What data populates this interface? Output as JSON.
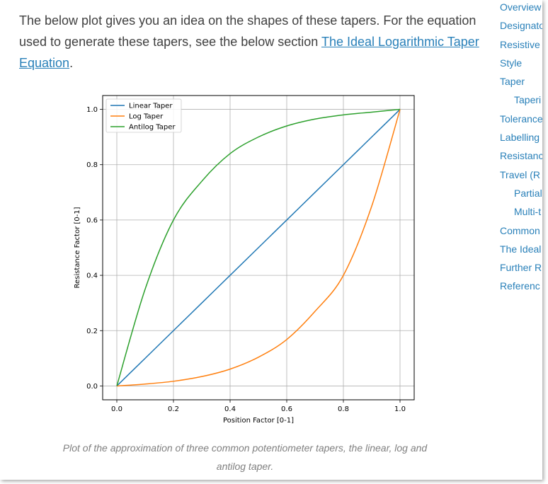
{
  "intro": {
    "text_before": "The below plot gives you an idea on the shapes of these tapers. For the equation used to generate these tapers, see the below section ",
    "link_text": "The Ideal Logarithmic Taper Equation",
    "text_after": "."
  },
  "toc": {
    "items": [
      {
        "label": "Overview",
        "sub": false
      },
      {
        "label": "Designato",
        "sub": false
      },
      {
        "label": "Resistive",
        "sub": false
      },
      {
        "label": "Style",
        "sub": false
      },
      {
        "label": "Taper",
        "sub": false
      },
      {
        "label": "Taperi",
        "sub": true
      },
      {
        "label": "Tolerance",
        "sub": false
      },
      {
        "label": "Labelling",
        "sub": false
      },
      {
        "label": "Resistanc",
        "sub": false
      },
      {
        "label": "Travel (R",
        "sub": false
      },
      {
        "label": "Partial",
        "sub": true
      },
      {
        "label": "Multi-t",
        "sub": true
      },
      {
        "label": "Common",
        "sub": false
      },
      {
        "label": "The Ideal",
        "sub": false
      },
      {
        "label": "Further R",
        "sub": false
      },
      {
        "label": "Referenc",
        "sub": false
      }
    ]
  },
  "caption": "Plot of the approximation of three common potentiometer tapers, the linear, log and antilog taper.",
  "colors": {
    "link": "#2980b9",
    "text": "#404040",
    "caption": "#808080",
    "linear": "#1f77b4",
    "log": "#ff7f0e",
    "antilog": "#2ca02c",
    "grid": "#b0b0b0"
  },
  "chart_data": {
    "type": "line",
    "title": "",
    "xlabel": "Position Factor [0-1]",
    "ylabel": "Resistance Factor [0-1]",
    "xlim": [
      -0.05,
      1.05
    ],
    "ylim": [
      -0.05,
      1.05
    ],
    "xticks": [
      "0.0",
      "0.2",
      "0.4",
      "0.6",
      "0.8",
      "1.0"
    ],
    "yticks": [
      "0.0",
      "0.2",
      "0.4",
      "0.6",
      "0.8",
      "1.0"
    ],
    "grid": true,
    "legend_position": "top-left",
    "x": [
      0.0,
      0.1,
      0.2,
      0.3,
      0.4,
      0.5,
      0.6,
      0.7,
      0.8,
      0.9,
      1.0
    ],
    "series": [
      {
        "name": "Linear Taper",
        "color": "#1f77b4",
        "values": [
          0.0,
          0.1,
          0.2,
          0.3,
          0.4,
          0.5,
          0.6,
          0.7,
          0.8,
          0.9,
          1.0
        ]
      },
      {
        "name": "Log Taper",
        "color": "#ff7f0e",
        "values": [
          0.0,
          0.007,
          0.017,
          0.034,
          0.061,
          0.104,
          0.168,
          0.27,
          0.4,
          0.65,
          1.0
        ]
      },
      {
        "name": "Antilog Taper",
        "color": "#2ca02c",
        "values": [
          0.0,
          0.35,
          0.6,
          0.74,
          0.84,
          0.9,
          0.94,
          0.965,
          0.98,
          0.99,
          1.0
        ]
      }
    ]
  }
}
